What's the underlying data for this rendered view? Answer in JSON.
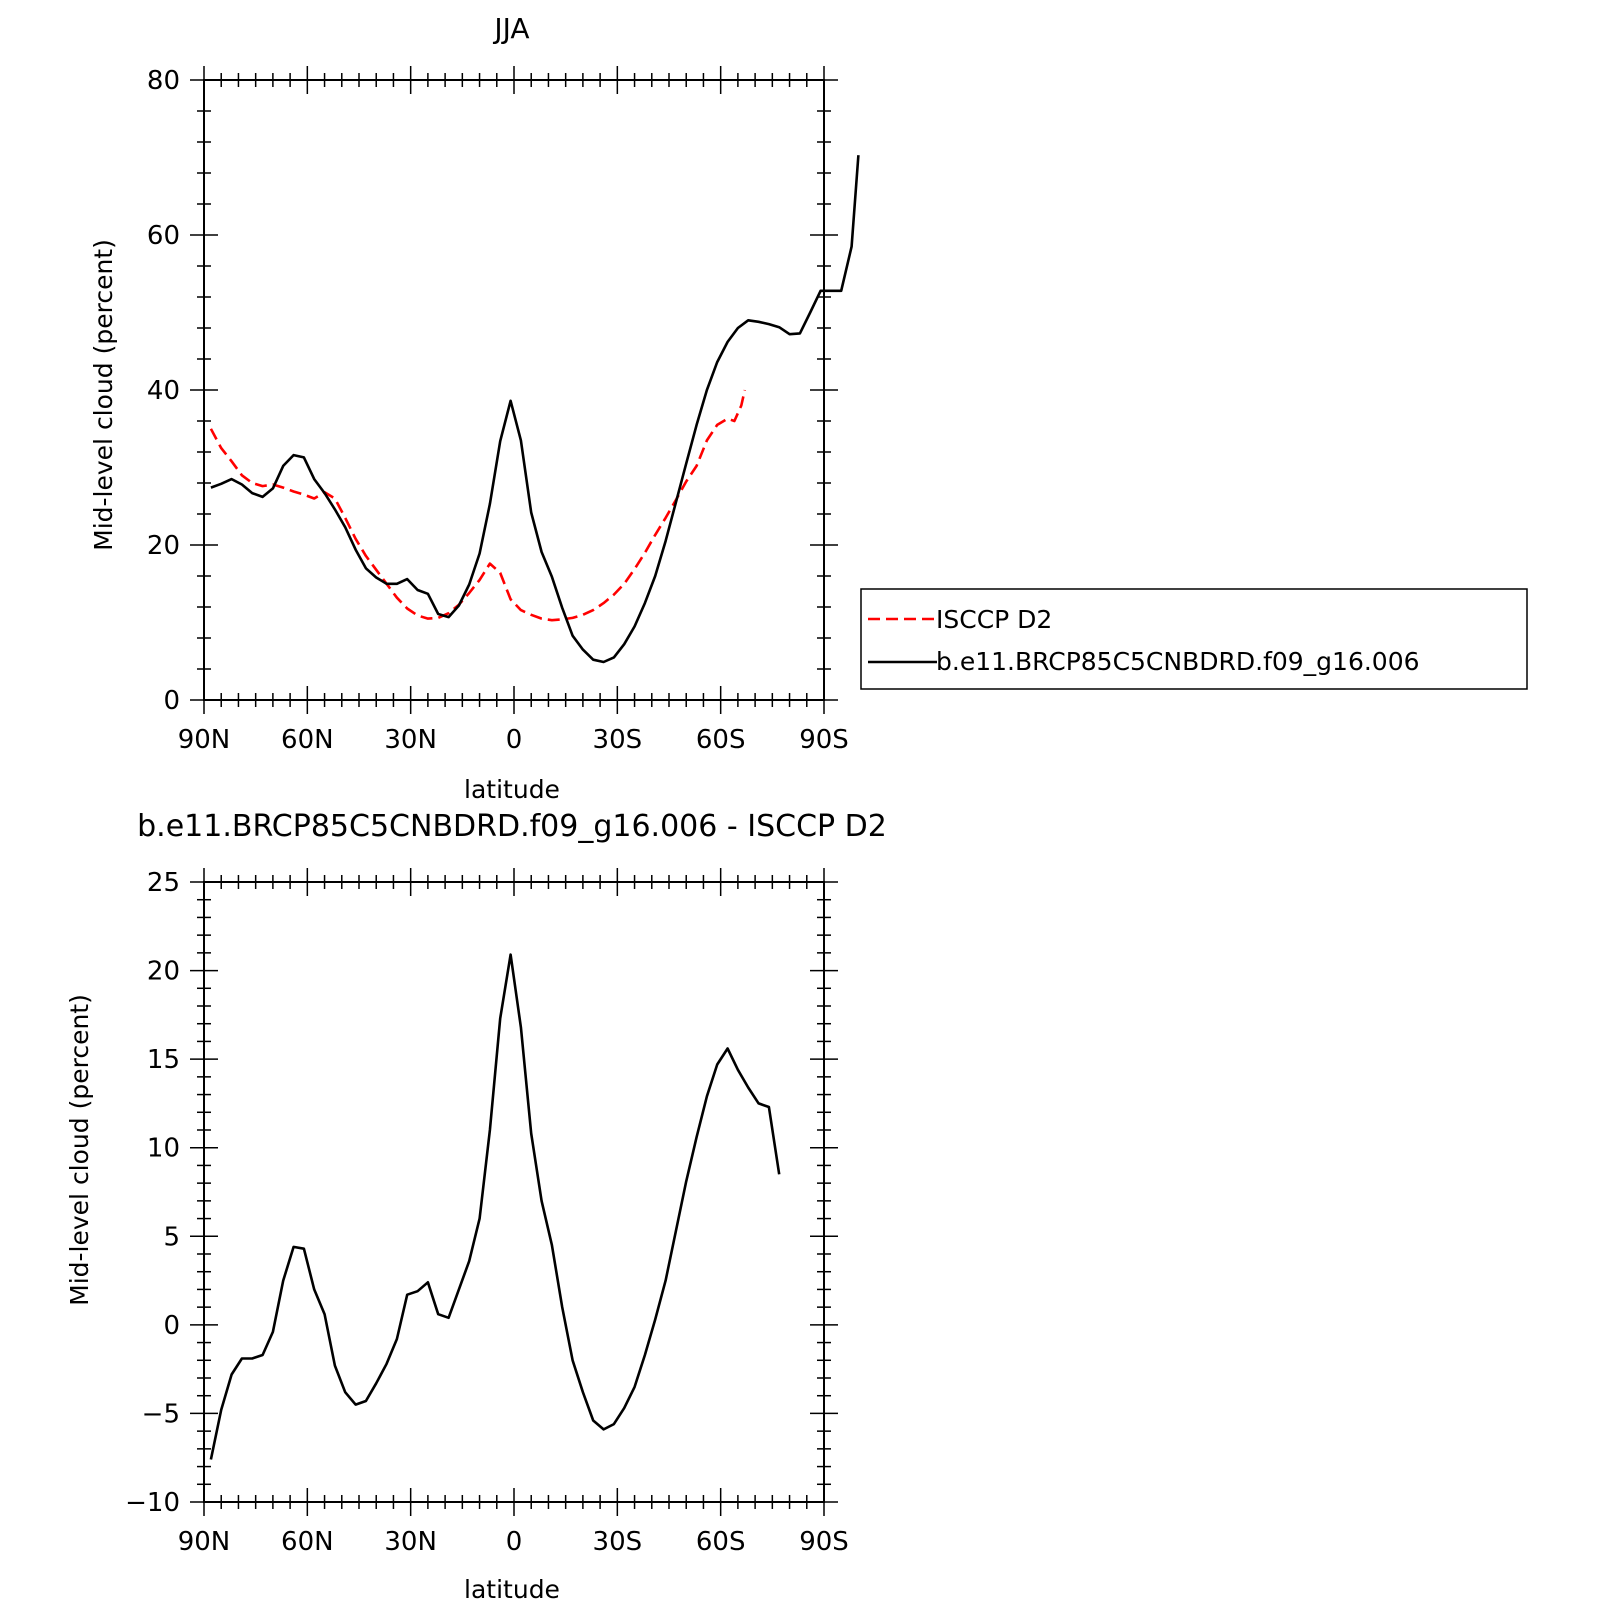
{
  "chart_data": [
    {
      "type": "line",
      "title": "JJA",
      "xlabel": "latitude",
      "ylabel": "Mid-level cloud (percent)",
      "xlim": [
        90,
        -90
      ],
      "ylim": [
        0,
        80
      ],
      "x_ticks": [
        {
          "value": 90,
          "label": "90N"
        },
        {
          "value": 60,
          "label": "60N"
        },
        {
          "value": 30,
          "label": "30N"
        },
        {
          "value": 0,
          "label": "0"
        },
        {
          "value": -30,
          "label": "30S"
        },
        {
          "value": -60,
          "label": "60S"
        },
        {
          "value": -90,
          "label": "90S"
        }
      ],
      "y_ticks": [
        {
          "value": 0,
          "label": "0"
        },
        {
          "value": 20,
          "label": "20"
        },
        {
          "value": 40,
          "label": "40"
        },
        {
          "value": 60,
          "label": "60"
        },
        {
          "value": 80,
          "label": "80"
        }
      ],
      "legend": {
        "placement": "right",
        "entries": [
          "ISCCP D2",
          "b.e11.BRCP85C5CNBDRD.f09_g16.006"
        ]
      },
      "series": [
        {
          "name": "ISCCP D2",
          "color": "#ff0000",
          "dash": "dashed",
          "points": [
            [
              88,
              35.0
            ],
            [
              85,
              32.5
            ],
            [
              82,
              30.8
            ],
            [
              79,
              29.0
            ],
            [
              76,
              28.0
            ],
            [
              73,
              27.6
            ],
            [
              70,
              27.8
            ],
            [
              67,
              27.4
            ],
            [
              64,
              26.9
            ],
            [
              61,
              26.5
            ],
            [
              58,
              26.0
            ],
            [
              55,
              26.8
            ],
            [
              52,
              26.0
            ],
            [
              49,
              23.5
            ],
            [
              46,
              20.8
            ],
            [
              43,
              18.6
            ],
            [
              40,
              16.8
            ],
            [
              37,
              15.0
            ],
            [
              34,
              13.2
            ],
            [
              31,
              11.8
            ],
            [
              28,
              10.9
            ],
            [
              25,
              10.5
            ],
            [
              22,
              10.6
            ],
            [
              19,
              11.2
            ],
            [
              16,
              12.3
            ],
            [
              13,
              13.8
            ],
            [
              10,
              15.5
            ],
            [
              7,
              17.6
            ],
            [
              4,
              16.4
            ],
            [
              1,
              13.0
            ],
            [
              -2,
              11.6
            ],
            [
              -5,
              11.0
            ],
            [
              -8,
              10.5
            ],
            [
              -11,
              10.3
            ],
            [
              -14,
              10.4
            ],
            [
              -17,
              10.6
            ],
            [
              -20,
              11.0
            ],
            [
              -23,
              11.6
            ],
            [
              -26,
              12.5
            ],
            [
              -29,
              13.6
            ],
            [
              -32,
              15.0
            ],
            [
              -35,
              16.9
            ],
            [
              -38,
              19.0
            ],
            [
              -41,
              21.3
            ],
            [
              -44,
              23.5
            ],
            [
              -47,
              25.8
            ],
            [
              -50,
              28.2
            ],
            [
              -53,
              30.2
            ],
            [
              -56,
              33.5
            ],
            [
              -59,
              35.5
            ],
            [
              -62,
              36.3
            ],
            [
              -64,
              36.0
            ],
            [
              -66,
              38.0
            ],
            [
              -67,
              40.0
            ]
          ]
        },
        {
          "name": "b.e11.BRCP85C5CNBDRD.f09_g16.006",
          "color": "#000000",
          "dash": "solid",
          "points": [
            [
              88,
              27.4
            ],
            [
              85,
              27.9
            ],
            [
              82,
              28.5
            ],
            [
              79,
              27.8
            ],
            [
              76,
              26.7
            ],
            [
              73,
              26.2
            ],
            [
              70,
              27.3
            ],
            [
              67,
              30.2
            ],
            [
              64,
              31.6
            ],
            [
              61,
              31.3
            ],
            [
              58,
              28.5
            ],
            [
              55,
              26.7
            ],
            [
              52,
              24.6
            ],
            [
              49,
              22.3
            ],
            [
              46,
              19.4
            ],
            [
              43,
              17.0
            ],
            [
              40,
              15.8
            ],
            [
              37,
              15.0
            ],
            [
              34,
              15.0
            ],
            [
              31,
              15.6
            ],
            [
              28,
              14.2
            ],
            [
              25,
              13.7
            ],
            [
              22,
              11.1
            ],
            [
              19,
              10.7
            ],
            [
              16,
              12.2
            ],
            [
              13,
              14.9
            ],
            [
              10,
              18.9
            ],
            [
              7,
              25.3
            ],
            [
              4,
              33.4
            ],
            [
              1,
              38.6
            ],
            [
              -2,
              33.5
            ],
            [
              -5,
              24.2
            ],
            [
              -8,
              19.1
            ],
            [
              -11,
              15.9
            ],
            [
              -14,
              11.9
            ],
            [
              -17,
              8.3
            ],
            [
              -20,
              6.5
            ],
            [
              -23,
              5.2
            ],
            [
              -26,
              4.9
            ],
            [
              -29,
              5.5
            ],
            [
              -32,
              7.2
            ],
            [
              -35,
              9.5
            ],
            [
              -38,
              12.5
            ],
            [
              -41,
              16.0
            ],
            [
              -44,
              20.5
            ],
            [
              -47,
              25.5
            ],
            [
              -50,
              30.5
            ],
            [
              -53,
              35.5
            ],
            [
              -56,
              40.0
            ],
            [
              -59,
              43.6
            ],
            [
              -62,
              46.2
            ],
            [
              -65,
              48.0
            ],
            [
              -68,
              49.0
            ],
            [
              -71,
              48.8
            ],
            [
              -74,
              48.5
            ],
            [
              -77,
              48.1
            ],
            [
              -80,
              47.2
            ],
            [
              -83,
              47.3
            ],
            [
              -86,
              50.0
            ],
            [
              -89,
              52.8
            ],
            [
              -92,
              52.8
            ],
            [
              -95,
              52.8
            ],
            [
              -98,
              58.5
            ],
            [
              -100,
              70.3
            ]
          ]
        }
      ]
    },
    {
      "type": "line",
      "title": "b.e11.BRCP85C5CNBDRD.f09_g16.006 - ISCCP D2",
      "xlabel": "latitude",
      "ylabel": "Mid-level cloud (percent)",
      "xlim": [
        90,
        -90
      ],
      "ylim": [
        -10,
        25
      ],
      "x_ticks": [
        {
          "value": 90,
          "label": "90N"
        },
        {
          "value": 60,
          "label": "60N"
        },
        {
          "value": 30,
          "label": "30N"
        },
        {
          "value": 0,
          "label": "0"
        },
        {
          "value": -30,
          "label": "30S"
        },
        {
          "value": -60,
          "label": "60S"
        },
        {
          "value": -90,
          "label": "90S"
        }
      ],
      "y_ticks": [
        {
          "value": -10,
          "label": "−10"
        },
        {
          "value": -5,
          "label": "−5"
        },
        {
          "value": 0,
          "label": "0"
        },
        {
          "value": 5,
          "label": "5"
        },
        {
          "value": 10,
          "label": "10"
        },
        {
          "value": 15,
          "label": "15"
        },
        {
          "value": 20,
          "label": "20"
        },
        {
          "value": 25,
          "label": "25"
        }
      ],
      "series": [
        {
          "color": "#000000",
          "dash": "solid",
          "points": [
            [
              88,
              -7.6
            ],
            [
              85,
              -4.8
            ],
            [
              82,
              -2.8
            ],
            [
              79,
              -1.9
            ],
            [
              76,
              -1.9
            ],
            [
              73,
              -1.7
            ],
            [
              70,
              -0.4
            ],
            [
              67,
              2.5
            ],
            [
              64,
              4.4
            ],
            [
              61,
              4.3
            ],
            [
              58,
              2.0
            ],
            [
              55,
              0.6
            ],
            [
              52,
              -2.3
            ],
            [
              49,
              -3.8
            ],
            [
              46,
              -4.5
            ],
            [
              43,
              -4.3
            ],
            [
              40,
              -3.3
            ],
            [
              37,
              -2.2
            ],
            [
              34,
              -0.8
            ],
            [
              31,
              1.7
            ],
            [
              28,
              1.9
            ],
            [
              25,
              2.4
            ],
            [
              22,
              0.6
            ],
            [
              19,
              0.4
            ],
            [
              16,
              2.0
            ],
            [
              13,
              3.6
            ],
            [
              10,
              6.0
            ],
            [
              7,
              11.0
            ],
            [
              4,
              17.3
            ],
            [
              1,
              20.9
            ],
            [
              -2,
              16.8
            ],
            [
              -5,
              10.8
            ],
            [
              -8,
              7.0
            ],
            [
              -11,
              4.5
            ],
            [
              -14,
              1.0
            ],
            [
              -17,
              -2.0
            ],
            [
              -20,
              -3.8
            ],
            [
              -23,
              -5.4
            ],
            [
              -26,
              -5.9
            ],
            [
              -29,
              -5.6
            ],
            [
              -32,
              -4.7
            ],
            [
              -35,
              -3.5
            ],
            [
              -38,
              -1.7
            ],
            [
              -41,
              0.3
            ],
            [
              -44,
              2.5
            ],
            [
              -47,
              5.3
            ],
            [
              -50,
              8.1
            ],
            [
              -53,
              10.6
            ],
            [
              -56,
              12.9
            ],
            [
              -59,
              14.7
            ],
            [
              -62,
              15.6
            ],
            [
              -65,
              14.4
            ],
            [
              -68,
              13.4
            ],
            [
              -71,
              12.5
            ],
            [
              -74,
              12.3
            ],
            [
              -77,
              8.5
            ]
          ]
        }
      ]
    }
  ]
}
